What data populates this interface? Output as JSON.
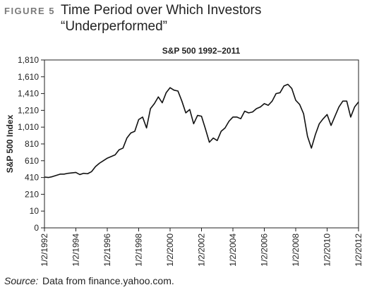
{
  "figure_label": "FIGURE 5",
  "figure_title": [
    "Time Period over Which Investors",
    "“Underperformed”"
  ],
  "source": {
    "label": "Source:",
    "text": "Data from finance.yahoo.com."
  },
  "chart_data": {
    "type": "line",
    "title": "S&P 500 1992–2011",
    "y_label": "S&P 500 Index",
    "color": "#111111",
    "x": [
      1992,
      1992.25,
      1992.5,
      1992.75,
      1993,
      1993.25,
      1993.5,
      1993.75,
      1994,
      1994.25,
      1994.5,
      1994.75,
      1995,
      1995.25,
      1995.5,
      1995.75,
      1996,
      1996.25,
      1996.5,
      1996.75,
      1997,
      1997.25,
      1997.5,
      1997.75,
      1998,
      1998.25,
      1998.5,
      1998.75,
      1999,
      1999.25,
      1999.5,
      1999.75,
      2000,
      2000.25,
      2000.5,
      2000.75,
      2001,
      2001.25,
      2001.5,
      2001.75,
      2002,
      2002.25,
      2002.5,
      2002.75,
      2003,
      2003.25,
      2003.5,
      2003.75,
      2004,
      2004.25,
      2004.5,
      2004.75,
      2005,
      2005.25,
      2005.5,
      2005.75,
      2006,
      2006.25,
      2006.5,
      2006.75,
      2007,
      2007.25,
      2007.5,
      2007.75,
      2008,
      2008.25,
      2008.5,
      2008.75,
      2009,
      2009.25,
      2009.5,
      2009.75,
      2010,
      2010.25,
      2010.5,
      2010.75,
      2011,
      2011.25,
      2011.5,
      2011.75,
      2012
    ],
    "values": [
      415,
      410,
      420,
      435,
      450,
      450,
      460,
      465,
      470,
      445,
      460,
      455,
      480,
      540,
      580,
      610,
      640,
      660,
      680,
      740,
      760,
      880,
      940,
      960,
      1100,
      1130,
      1000,
      1230,
      1290,
      1370,
      1300,
      1420,
      1480,
      1450,
      1440,
      1320,
      1180,
      1220,
      1050,
      1150,
      1140,
      990,
      830,
      880,
      850,
      960,
      1000,
      1080,
      1130,
      1130,
      1110,
      1200,
      1180,
      1190,
      1230,
      1250,
      1290,
      1270,
      1320,
      1410,
      1420,
      1500,
      1520,
      1470,
      1330,
      1280,
      1170,
      900,
      760,
      920,
      1050,
      1110,
      1160,
      1030,
      1140,
      1250,
      1320,
      1320,
      1130,
      1250,
      1310
    ],
    "xlim": [
      1992,
      2012
    ],
    "xticks": [
      {
        "value": 1992,
        "label": "1/2/1992"
      },
      {
        "value": 1994,
        "label": "1/2/1994"
      },
      {
        "value": 1996,
        "label": "1/2/1996"
      },
      {
        "value": 1998,
        "label": "1/2/1998"
      },
      {
        "value": 2000,
        "label": "1/2/2000"
      },
      {
        "value": 2002,
        "label": "1/2/2002"
      },
      {
        "value": 2004,
        "label": "1/2/2004"
      },
      {
        "value": 2006,
        "label": "1/2/2006"
      },
      {
        "value": 2008,
        "label": "1/2/2008"
      },
      {
        "value": 2010,
        "label": "1/2/2010"
      },
      {
        "value": 2012,
        "label": "1/2/2012"
      }
    ],
    "ylim": [
      0,
      1810
    ],
    "yticks": [
      0,
      10,
      210,
      410,
      610,
      810,
      {
        "value": 1010,
        "label": "1,010"
      },
      {
        "value": 1210,
        "label": "1,210"
      },
      {
        "value": 1410,
        "label": "1,410"
      },
      {
        "value": 1610,
        "label": "1,610"
      },
      {
        "value": 1810,
        "label": "1,810"
      }
    ],
    "grid": false
  }
}
